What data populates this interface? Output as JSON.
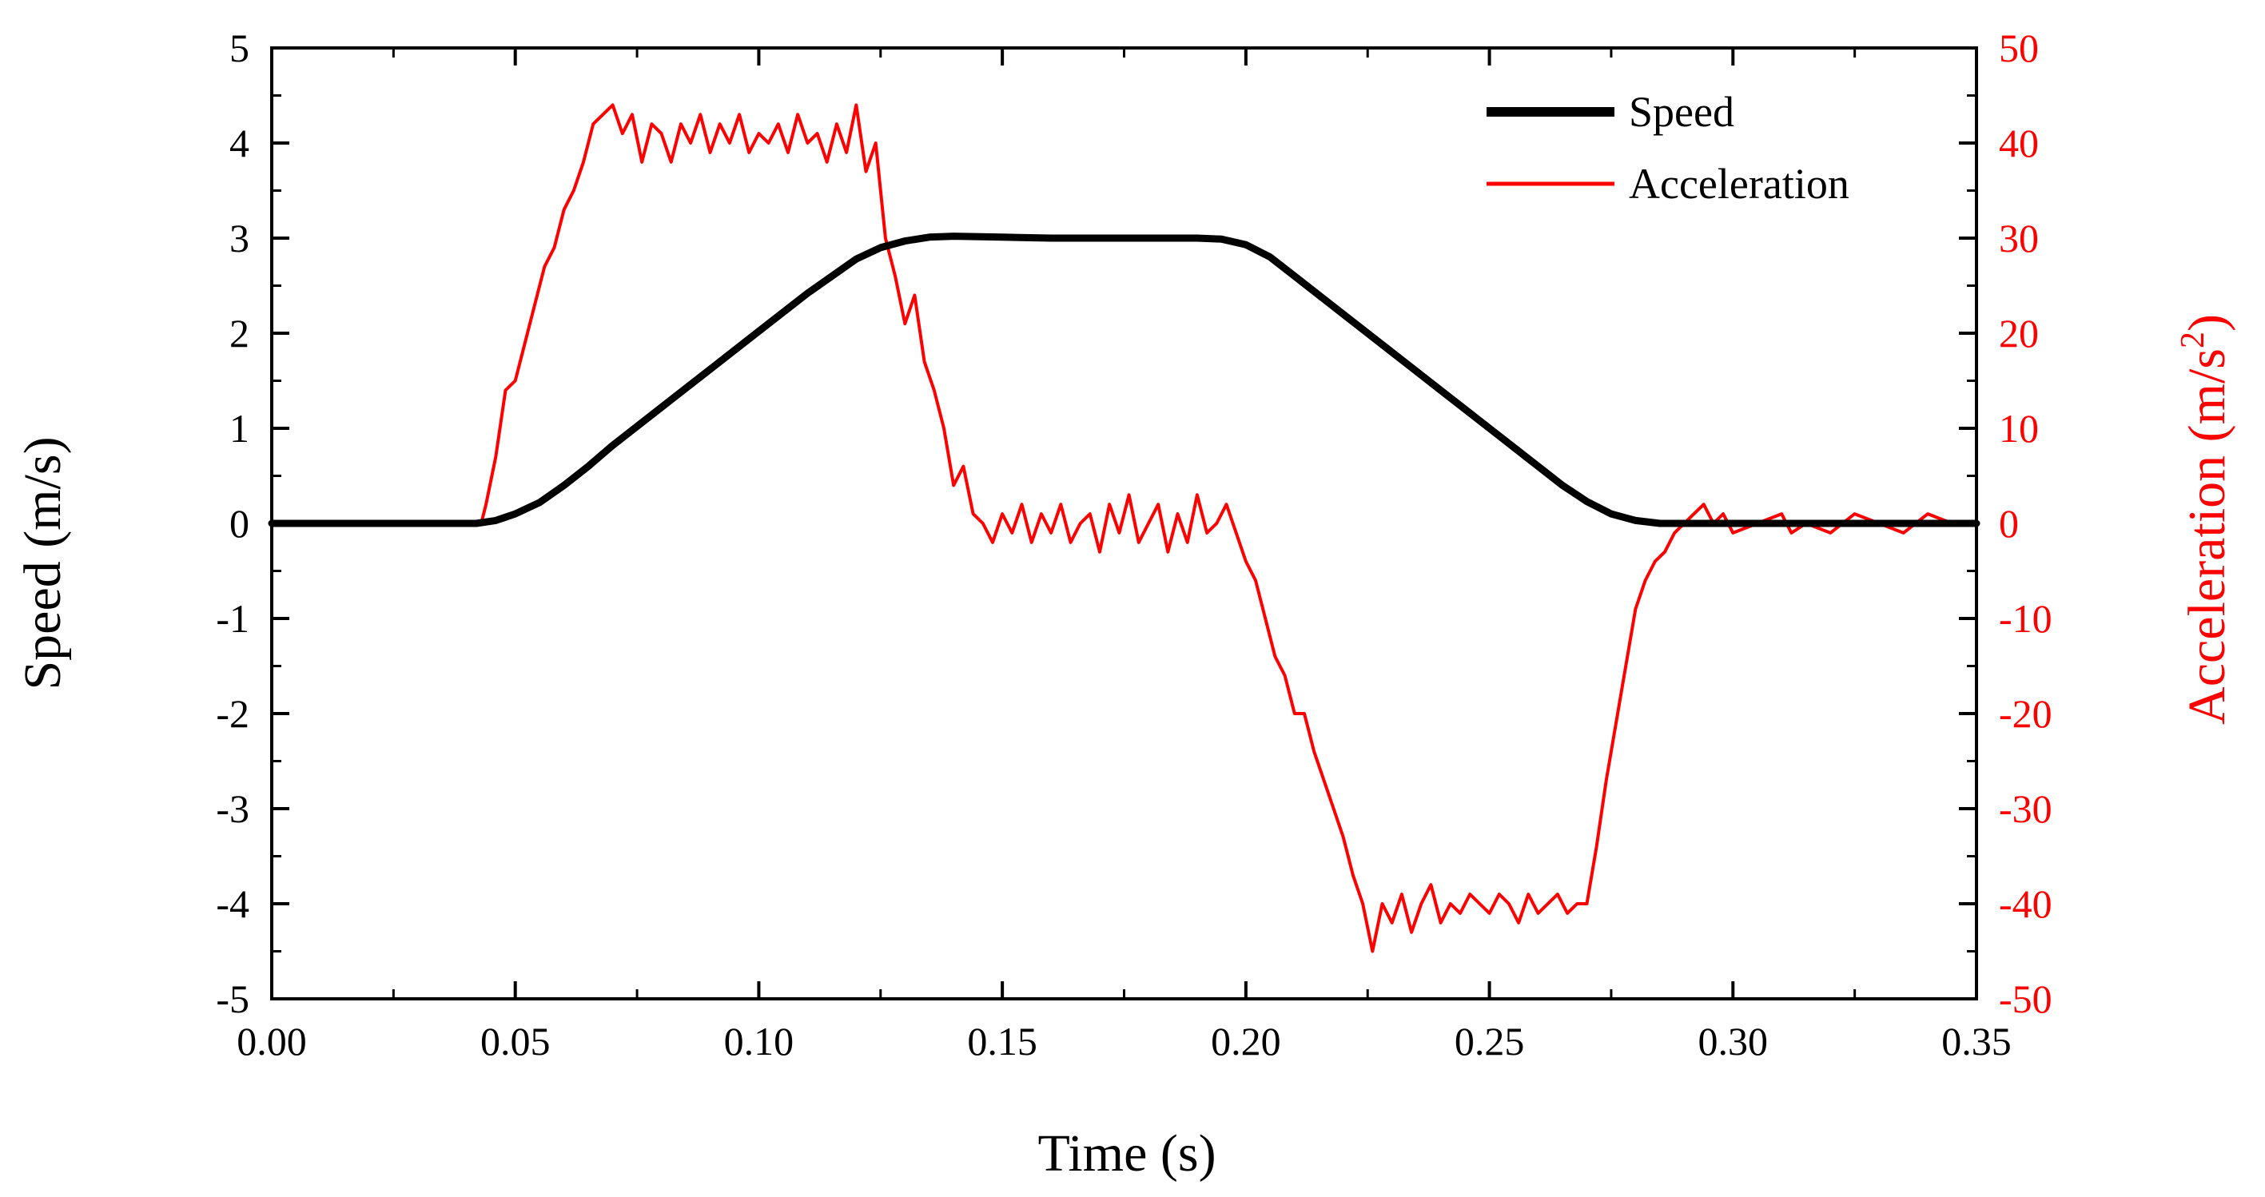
{
  "chart_data": {
    "type": "line",
    "title": "",
    "xlabel": "Time (s)",
    "ylabel_left": "Speed (m/s)",
    "ylabel_right_prefix": "Acceleration (m/s",
    "ylabel_right_sup": "2",
    "ylabel_right_suffix": ")",
    "xlim": [
      0.0,
      0.35
    ],
    "ylim_left": [
      -5,
      5
    ],
    "ylim_right": [
      -50,
      50
    ],
    "x_ticks": [
      "0.00",
      "0.05",
      "0.10",
      "0.15",
      "0.20",
      "0.25",
      "0.30",
      "0.35"
    ],
    "y_left_ticks": [
      "5",
      "4",
      "3",
      "2",
      "1",
      "0",
      "-1",
      "-2",
      "-3",
      "-4",
      "-5"
    ],
    "y_right_ticks": [
      "50",
      "40",
      "30",
      "20",
      "10",
      "0",
      "-10",
      "-20",
      "-30",
      "-40",
      "-50"
    ],
    "grid": false,
    "legend_position": "top-right",
    "colors": {
      "speed": "#000000",
      "acceleration": "#ff0000",
      "axis": "#000000"
    },
    "series": [
      {
        "name": "Speed",
        "axis": "left",
        "x": [
          0.0,
          0.042,
          0.046,
          0.05,
          0.055,
          0.06,
          0.065,
          0.07,
          0.075,
          0.08,
          0.09,
          0.1,
          0.11,
          0.12,
          0.125,
          0.13,
          0.135,
          0.14,
          0.15,
          0.16,
          0.17,
          0.18,
          0.19,
          0.195,
          0.2,
          0.205,
          0.21,
          0.215,
          0.22,
          0.23,
          0.24,
          0.25,
          0.26,
          0.265,
          0.27,
          0.275,
          0.28,
          0.285,
          0.29,
          0.3,
          0.35
        ],
        "values": [
          0.0,
          0.0,
          0.03,
          0.1,
          0.22,
          0.4,
          0.6,
          0.82,
          1.02,
          1.22,
          1.62,
          2.02,
          2.42,
          2.78,
          2.9,
          2.97,
          3.01,
          3.02,
          3.01,
          3.0,
          3.0,
          3.0,
          3.0,
          2.99,
          2.93,
          2.8,
          2.6,
          2.4,
          2.2,
          1.8,
          1.4,
          1.0,
          0.6,
          0.4,
          0.23,
          0.1,
          0.03,
          0.0,
          0.0,
          0.0,
          0.0
        ]
      },
      {
        "name": "Acceleration",
        "axis": "right",
        "x": [
          0.0,
          0.043,
          0.044,
          0.046,
          0.048,
          0.05,
          0.052,
          0.054,
          0.056,
          0.058,
          0.06,
          0.062,
          0.064,
          0.066,
          0.068,
          0.07,
          0.072,
          0.074,
          0.076,
          0.078,
          0.08,
          0.082,
          0.084,
          0.086,
          0.088,
          0.09,
          0.092,
          0.094,
          0.096,
          0.098,
          0.1,
          0.102,
          0.104,
          0.106,
          0.108,
          0.11,
          0.112,
          0.114,
          0.116,
          0.118,
          0.12,
          0.122,
          0.124,
          0.126,
          0.128,
          0.13,
          0.132,
          0.134,
          0.136,
          0.138,
          0.14,
          0.142,
          0.144,
          0.146,
          0.148,
          0.15,
          0.152,
          0.154,
          0.156,
          0.158,
          0.16,
          0.162,
          0.164,
          0.166,
          0.168,
          0.17,
          0.172,
          0.174,
          0.176,
          0.178,
          0.18,
          0.182,
          0.184,
          0.186,
          0.188,
          0.19,
          0.192,
          0.194,
          0.196,
          0.198,
          0.2,
          0.202,
          0.204,
          0.206,
          0.208,
          0.21,
          0.212,
          0.214,
          0.216,
          0.218,
          0.22,
          0.222,
          0.224,
          0.226,
          0.228,
          0.23,
          0.232,
          0.234,
          0.236,
          0.238,
          0.24,
          0.242,
          0.244,
          0.246,
          0.248,
          0.25,
          0.252,
          0.254,
          0.256,
          0.258,
          0.26,
          0.262,
          0.264,
          0.266,
          0.268,
          0.27,
          0.272,
          0.274,
          0.276,
          0.278,
          0.28,
          0.282,
          0.284,
          0.286,
          0.288,
          0.29,
          0.292,
          0.294,
          0.296,
          0.298,
          0.3,
          0.305,
          0.31,
          0.312,
          0.315,
          0.32,
          0.325,
          0.33,
          0.335,
          0.34,
          0.345,
          0.35
        ],
        "values": [
          0.0,
          0.0,
          2.0,
          7.0,
          14.0,
          15.0,
          19.0,
          23.0,
          27.0,
          29.0,
          33.0,
          35.0,
          38.0,
          42.0,
          43.0,
          44.0,
          41.0,
          43.0,
          38.0,
          42.0,
          41.0,
          38.0,
          42.0,
          40.0,
          43.0,
          39.0,
          42.0,
          40.0,
          43.0,
          39.0,
          41.0,
          40.0,
          42.0,
          39.0,
          43.0,
          40.0,
          41.0,
          38.0,
          42.0,
          39.0,
          44.0,
          37.0,
          40.0,
          30.0,
          26.0,
          21.0,
          24.0,
          17.0,
          14.0,
          10.0,
          4.0,
          6.0,
          1.0,
          0.0,
          -2.0,
          1.0,
          -1.0,
          2.0,
          -2.0,
          1.0,
          -1.0,
          2.0,
          -2.0,
          0.0,
          1.0,
          -3.0,
          2.0,
          -1.0,
          3.0,
          -2.0,
          0.0,
          2.0,
          -3.0,
          1.0,
          -2.0,
          3.0,
          -1.0,
          0.0,
          2.0,
          -1.0,
          -4.0,
          -6.0,
          -10.0,
          -14.0,
          -16.0,
          -20.0,
          -20.0,
          -24.0,
          -27.0,
          -30.0,
          -33.0,
          -37.0,
          -40.0,
          -45.0,
          -40.0,
          -42.0,
          -39.0,
          -43.0,
          -40.0,
          -38.0,
          -42.0,
          -40.0,
          -41.0,
          -39.0,
          -40.0,
          -41.0,
          -39.0,
          -40.0,
          -42.0,
          -39.0,
          -41.0,
          -40.0,
          -39.0,
          -41.0,
          -40.0,
          -40.0,
          -34.0,
          -27.0,
          -21.0,
          -15.0,
          -9.0,
          -6.0,
          -4.0,
          -3.0,
          -1.0,
          0.0,
          1.0,
          2.0,
          0.0,
          1.0,
          -1.0,
          0.0,
          1.0,
          -1.0,
          0.0,
          -1.0,
          1.0,
          0.0,
          -1.0,
          1.0,
          0.0,
          0.0
        ]
      }
    ]
  }
}
